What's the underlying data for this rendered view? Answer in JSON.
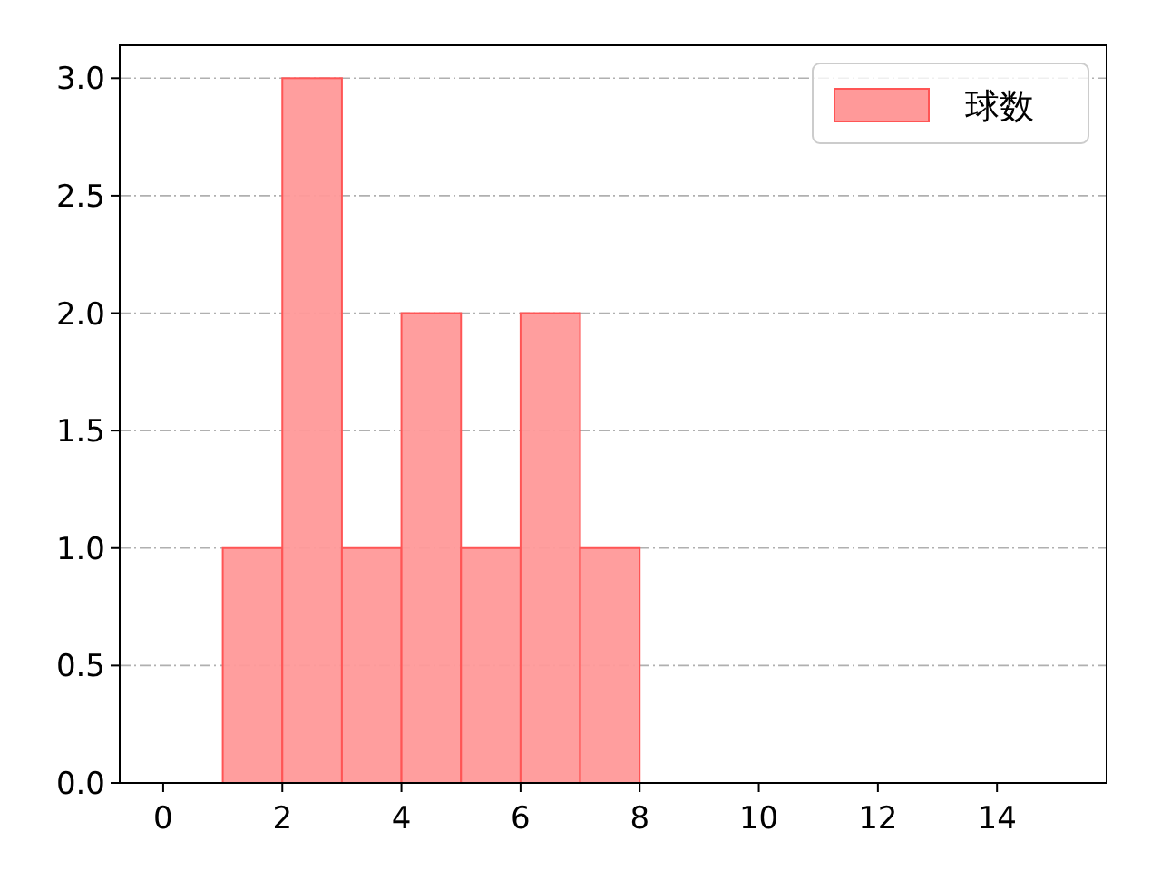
{
  "chart_data": {
    "type": "histogram",
    "bins": [
      1,
      2,
      3,
      4,
      5,
      6,
      7,
      8
    ],
    "series": [
      {
        "name": "球数",
        "color": "#ff9999",
        "values": [
          1,
          3,
          1,
          2,
          1,
          2,
          1
        ]
      }
    ],
    "xlim": [
      -0.73,
      15.84
    ],
    "ylim": [
      0,
      3.14
    ],
    "xticks": [
      0,
      2,
      4,
      6,
      8,
      10,
      12,
      14
    ],
    "yticks": [
      {
        "value": 0,
        "label": "0.0"
      },
      {
        "value": 0.5,
        "label": "0.5"
      },
      {
        "value": 1,
        "label": "1.0"
      },
      {
        "value": 1.5,
        "label": "1.5"
      },
      {
        "value": 2,
        "label": "2.0"
      },
      {
        "value": 2.5,
        "label": "2.5"
      },
      {
        "value": 3,
        "label": "3.0"
      }
    ],
    "grid": "y",
    "legend": "top right"
  }
}
